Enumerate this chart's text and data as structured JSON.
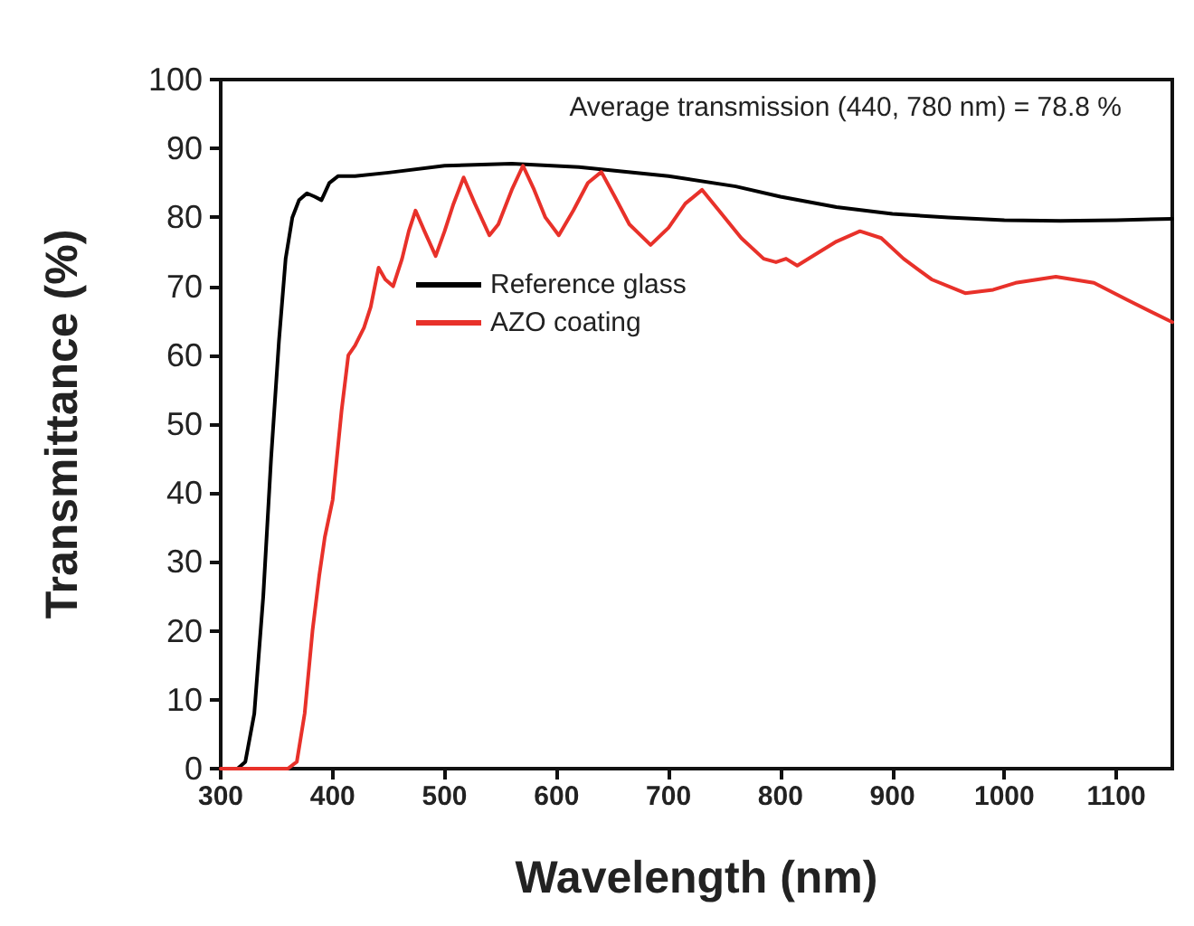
{
  "chart_data": {
    "type": "line",
    "xlabel": "Wavelength (nm)",
    "ylabel": "Transmittance (%)",
    "annotations": [
      "Average transmission (440, 780 nm) = 78.8 %"
    ],
    "xlim": [
      300,
      1150
    ],
    "xticks": [
      300,
      400,
      500,
      600,
      700,
      800,
      900,
      1000,
      1100
    ],
    "ylim": [
      0,
      100
    ],
    "yticks": [
      0,
      10,
      20,
      30,
      40,
      50,
      60,
      70,
      80,
      90,
      100
    ],
    "grid": false,
    "legend": "top",
    "marker": "none",
    "line_style": "solid",
    "series": [
      {
        "name": "Reference glass",
        "color": "#000000",
        "x": [
          300,
          315,
          322,
          330,
          338,
          345,
          352,
          358,
          364,
          370,
          377,
          384,
          390,
          397,
          405,
          420,
          450,
          500,
          560,
          620,
          700,
          760,
          800,
          850,
          900,
          950,
          1000,
          1050,
          1100,
          1150
        ],
        "values": [
          0,
          0,
          1,
          8,
          25,
          45,
          62,
          74,
          80,
          82.5,
          83.5,
          83,
          82.5,
          85,
          86,
          86,
          86.5,
          87.5,
          87.8,
          87.3,
          86,
          84.5,
          83,
          81.5,
          80.5,
          80,
          79.6,
          79.5,
          79.6,
          79.8
        ]
      },
      {
        "name": "AZO coating",
        "color": "#e8312a",
        "x": [
          300,
          360,
          368,
          375,
          382,
          388,
          393,
          400,
          408,
          414,
          420,
          428,
          434,
          441,
          447,
          454,
          462,
          468,
          474,
          482,
          492,
          500,
          508,
          517,
          527,
          540,
          548,
          560,
          570,
          580,
          590,
          602,
          615,
          628,
          640,
          652,
          665,
          684,
          700,
          715,
          730,
          745,
          765,
          785,
          796,
          805,
          815,
          830,
          850,
          871,
          890,
          910,
          935,
          965,
          990,
          1010,
          1046,
          1080,
          1110,
          1150
        ],
        "values": [
          0,
          0,
          1,
          8,
          20,
          28,
          33.6,
          39,
          52,
          60,
          61.4,
          64,
          67,
          72.7,
          71,
          70,
          74,
          78,
          81,
          78,
          74.4,
          78,
          82,
          85.8,
          82,
          77.4,
          79,
          84,
          87.5,
          84,
          80,
          77.4,
          81,
          85,
          86.6,
          83,
          79,
          76,
          78.5,
          82,
          84,
          81,
          77,
          74,
          73.5,
          74,
          73,
          74.5,
          76.5,
          78,
          77,
          74,
          71,
          69,
          69.5,
          70.5,
          71.4,
          70.5,
          68,
          64.8
        ]
      }
    ]
  }
}
